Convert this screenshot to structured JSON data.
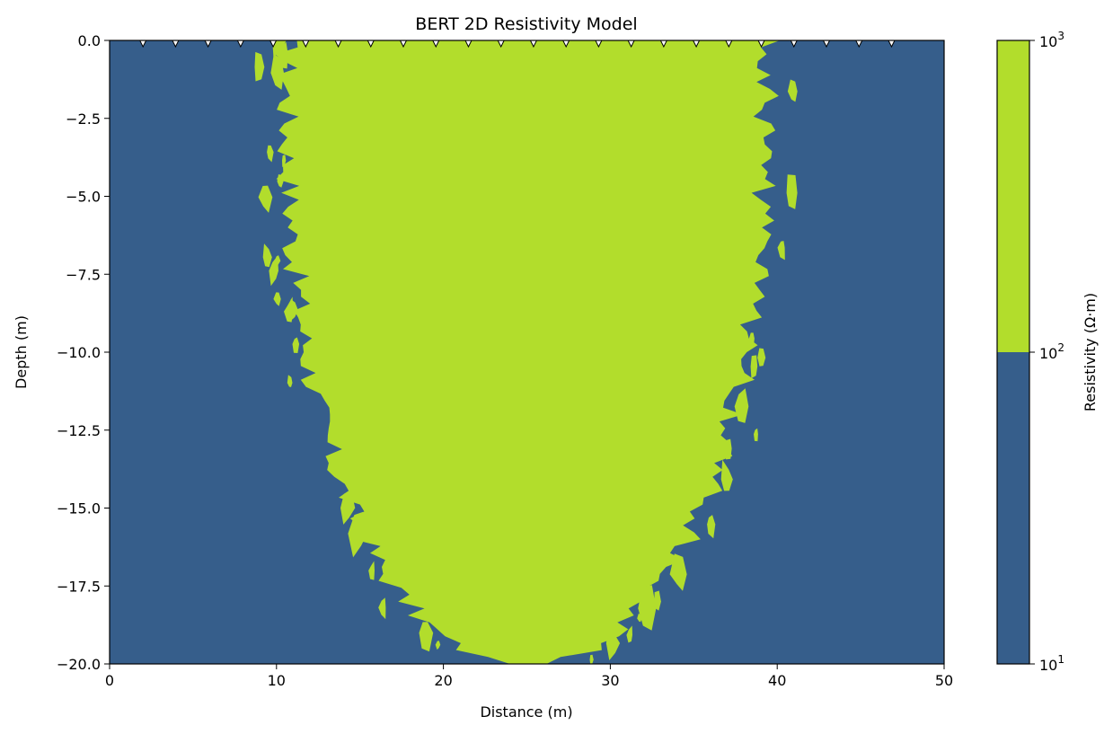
{
  "chart_data": {
    "type": "heatmap",
    "title": "BERT 2D Resistivity Model",
    "xlabel": "Distance (m)",
    "ylabel": "Depth (m)",
    "xlim": [
      0,
      50
    ],
    "ylim": [
      -20,
      0
    ],
    "x_ticks": [
      "0",
      "10",
      "20",
      "30",
      "40",
      "50"
    ],
    "x_tick_values": [
      0,
      10,
      20,
      30,
      40,
      50
    ],
    "y_ticks": [
      "0.0",
      "−2.5",
      "−5.0",
      "−7.5",
      "−10.0",
      "−12.5",
      "−15.0",
      "−17.5",
      "−20.0"
    ],
    "y_tick_values": [
      0,
      -2.5,
      -5,
      -7.5,
      -10,
      -12.5,
      -15,
      -17.5,
      -20
    ],
    "grid": false,
    "colorbar": {
      "label": "Resistivity (Ω·m)",
      "scale": "log",
      "tick_values": [
        10,
        100,
        1000
      ],
      "tick_labels": [
        {
          "base": "10",
          "exp": "1"
        },
        {
          "base": "10",
          "exp": "2"
        },
        {
          "base": "10",
          "exp": "3"
        }
      ],
      "bands": [
        {
          "range": [
            10,
            100
          ],
          "color": "#365e8b"
        },
        {
          "range": [
            100,
            1000
          ],
          "color": "#b2dd2c"
        }
      ]
    },
    "regions": [
      {
        "name": "background",
        "resistivity_range": [
          10,
          100
        ],
        "color": "#365e8b"
      },
      {
        "name": "resistive-anomaly",
        "resistivity_range": [
          100,
          1000
        ],
        "color": "#b2dd2c",
        "x_extent": [
          11,
          39
        ],
        "depth_extent": [
          -20,
          0
        ]
      }
    ],
    "electrodes": {
      "count": 24,
      "spacing": 1.95,
      "positions": [
        2.0,
        3.95,
        5.9,
        7.85,
        9.8,
        11.75,
        13.7,
        15.65,
        17.6,
        19.55,
        21.5,
        23.45,
        25.4,
        27.35,
        29.3,
        31.25,
        33.2,
        35.15,
        37.1,
        39.05,
        41.0,
        42.95,
        44.9,
        46.85
      ],
      "depth": 0,
      "marker": "triangle-down",
      "color": "#ffffff"
    }
  }
}
